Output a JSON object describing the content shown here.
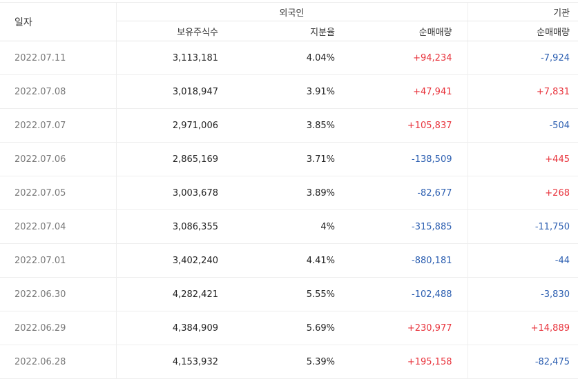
{
  "header": {
    "date_label": "일자",
    "foreign_group": "외국인",
    "institution_group": "기관",
    "holdings_label": "보유주식수",
    "share_label": "지분율",
    "foreign_net_label": "순매매량",
    "inst_net_label": "순매매량"
  },
  "colors": {
    "up": "#e8323b",
    "down": "#2a5db0"
  },
  "rows": [
    {
      "date": "2022.07.11",
      "holdings": "3,113,181",
      "share": "4.04%",
      "foreign_net": "+94,234",
      "inst_net": "-7,924"
    },
    {
      "date": "2022.07.08",
      "holdings": "3,018,947",
      "share": "3.91%",
      "foreign_net": "+47,941",
      "inst_net": "+7,831"
    },
    {
      "date": "2022.07.07",
      "holdings": "2,971,006",
      "share": "3.85%",
      "foreign_net": "+105,837",
      "inst_net": "-504"
    },
    {
      "date": "2022.07.06",
      "holdings": "2,865,169",
      "share": "3.71%",
      "foreign_net": "-138,509",
      "inst_net": "+445"
    },
    {
      "date": "2022.07.05",
      "holdings": "3,003,678",
      "share": "3.89%",
      "foreign_net": "-82,677",
      "inst_net": "+268"
    },
    {
      "date": "2022.07.04",
      "holdings": "3,086,355",
      "share": "4%",
      "foreign_net": "-315,885",
      "inst_net": "-11,750"
    },
    {
      "date": "2022.07.01",
      "holdings": "3,402,240",
      "share": "4.41%",
      "foreign_net": "-880,181",
      "inst_net": "-44"
    },
    {
      "date": "2022.06.30",
      "holdings": "4,282,421",
      "share": "5.55%",
      "foreign_net": "-102,488",
      "inst_net": "-3,830"
    },
    {
      "date": "2022.06.29",
      "holdings": "4,384,909",
      "share": "5.69%",
      "foreign_net": "+230,977",
      "inst_net": "+14,889"
    },
    {
      "date": "2022.06.28",
      "holdings": "4,153,932",
      "share": "5.39%",
      "foreign_net": "+195,158",
      "inst_net": "-82,475"
    }
  ]
}
